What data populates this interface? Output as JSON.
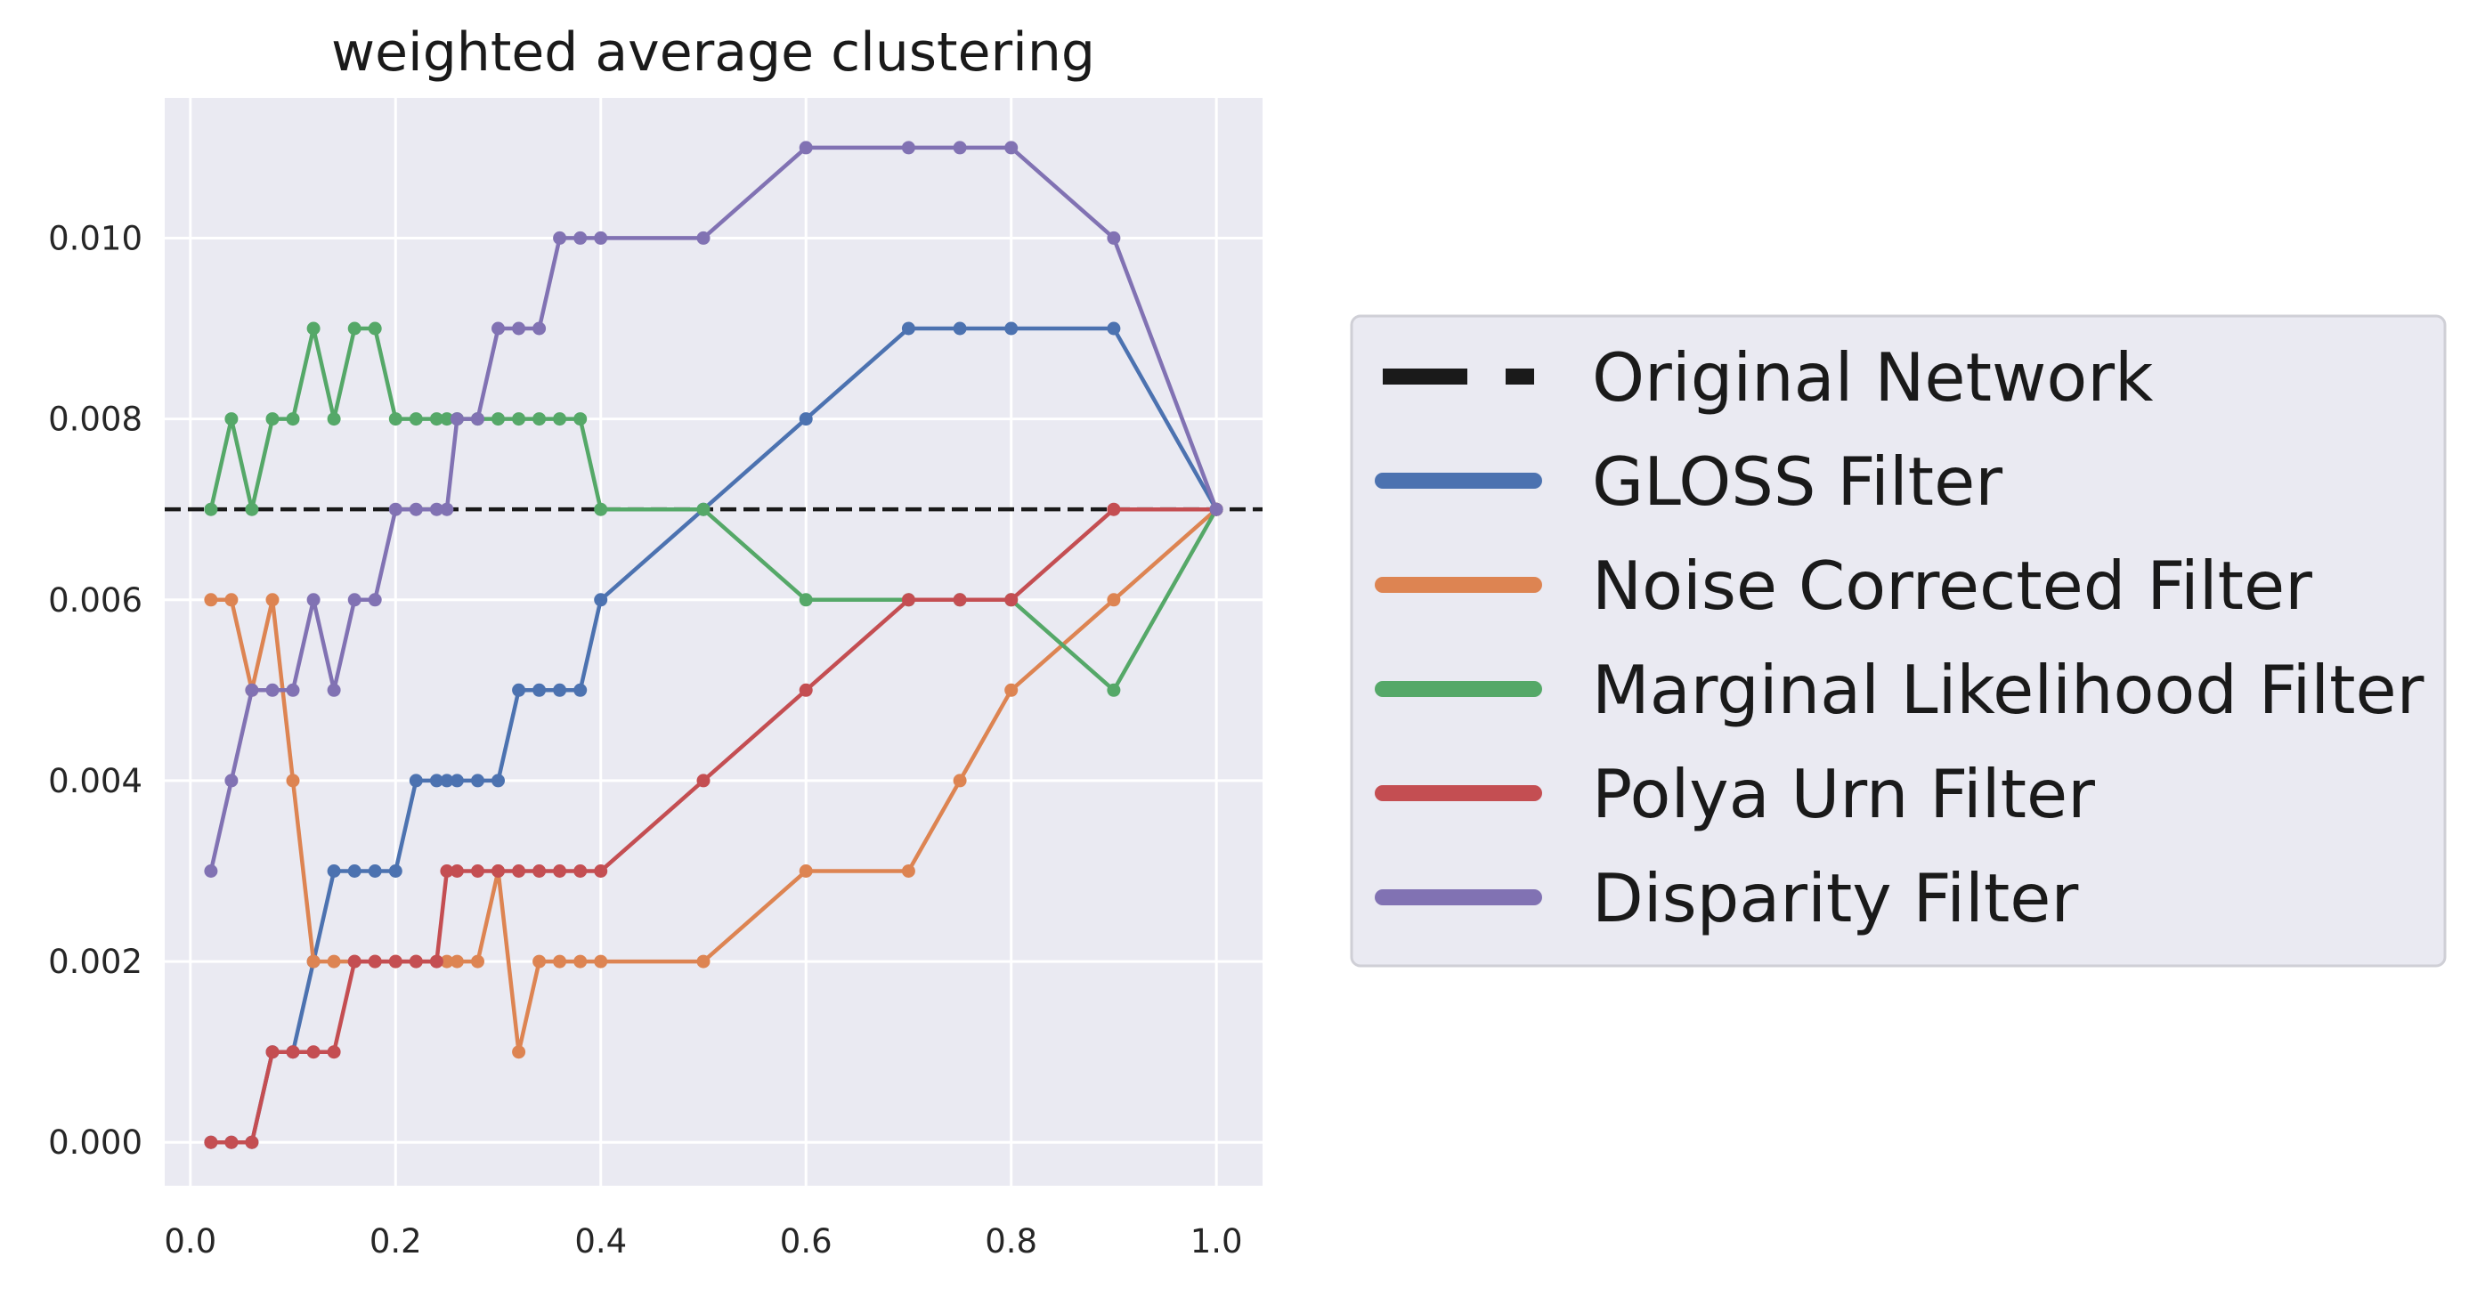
{
  "chart_data": {
    "type": "line",
    "title": "weighted average clustering",
    "xlabel": "",
    "ylabel": "",
    "xlim": [
      -0.025,
      1.045
    ],
    "ylim": [
      -0.00048,
      0.01155
    ],
    "x_ticks": [
      0.0,
      0.2,
      0.4,
      0.6,
      0.8,
      1.0
    ],
    "x_tick_labels": [
      "0.0",
      "0.2",
      "0.4",
      "0.6",
      "0.8",
      "1.0"
    ],
    "y_ticks": [
      0.0,
      0.002,
      0.004,
      0.006,
      0.008,
      0.01
    ],
    "y_tick_labels": [
      "0.000",
      "0.002",
      "0.004",
      "0.006",
      "0.008",
      "0.010"
    ],
    "grid": true,
    "legend_position": "outside-right",
    "reference_line": {
      "name": "Original Network",
      "y": 0.007,
      "color": "#1a1a1a",
      "style": "dashed"
    },
    "x": [
      0.02,
      0.04,
      0.06,
      0.08,
      0.1,
      0.12,
      0.14,
      0.16,
      0.18,
      0.2,
      0.22,
      0.24,
      0.25,
      0.26,
      0.28,
      0.3,
      0.32,
      0.34,
      0.36,
      0.38,
      0.4,
      0.5,
      0.6,
      0.7,
      0.75,
      0.8,
      0.9,
      1.0
    ],
    "series": [
      {
        "name": "GLOSS Filter",
        "color": "#4c72b0",
        "values": [
          0.0,
          0.0,
          0.0,
          0.001,
          0.001,
          0.002,
          0.003,
          0.003,
          0.003,
          0.003,
          0.004,
          0.004,
          0.004,
          0.004,
          0.004,
          0.004,
          0.005,
          0.005,
          0.005,
          0.005,
          0.006,
          0.007,
          0.008,
          0.009,
          0.009,
          0.009,
          0.009,
          0.007
        ]
      },
      {
        "name": "Noise Corrected Filter",
        "color": "#dd8452",
        "values": [
          0.006,
          0.006,
          0.005,
          0.006,
          0.004,
          0.002,
          0.002,
          0.002,
          0.002,
          0.002,
          0.002,
          0.002,
          0.002,
          0.002,
          0.002,
          0.003,
          0.001,
          0.002,
          0.002,
          0.002,
          0.002,
          0.002,
          0.003,
          0.003,
          0.004,
          0.005,
          0.006,
          0.007
        ]
      },
      {
        "name": "Marginal Likelihood Filter",
        "color": "#55a868",
        "values": [
          0.007,
          0.008,
          0.007,
          0.008,
          0.008,
          0.009,
          0.008,
          0.009,
          0.009,
          0.008,
          0.008,
          0.008,
          0.008,
          0.008,
          0.008,
          0.008,
          0.008,
          0.008,
          0.008,
          0.008,
          0.007,
          0.007,
          0.006,
          0.006,
          0.006,
          0.006,
          0.005,
          0.007
        ]
      },
      {
        "name": "Polya Urn Filter",
        "color": "#c44e52",
        "values": [
          0.0,
          0.0,
          0.0,
          0.001,
          0.001,
          0.001,
          0.001,
          0.002,
          0.002,
          0.002,
          0.002,
          0.002,
          0.003,
          0.003,
          0.003,
          0.003,
          0.003,
          0.003,
          0.003,
          0.003,
          0.003,
          0.004,
          0.005,
          0.006,
          0.006,
          0.006,
          0.007,
          0.007
        ]
      },
      {
        "name": "Disparity Filter",
        "color": "#8172b3",
        "values": [
          0.003,
          0.004,
          0.005,
          0.005,
          0.005,
          0.006,
          0.005,
          0.006,
          0.006,
          0.007,
          0.007,
          0.007,
          0.007,
          0.008,
          0.008,
          0.009,
          0.009,
          0.009,
          0.01,
          0.01,
          0.01,
          0.01,
          0.011,
          0.011,
          0.011,
          0.011,
          0.01,
          0.007
        ]
      }
    ]
  }
}
